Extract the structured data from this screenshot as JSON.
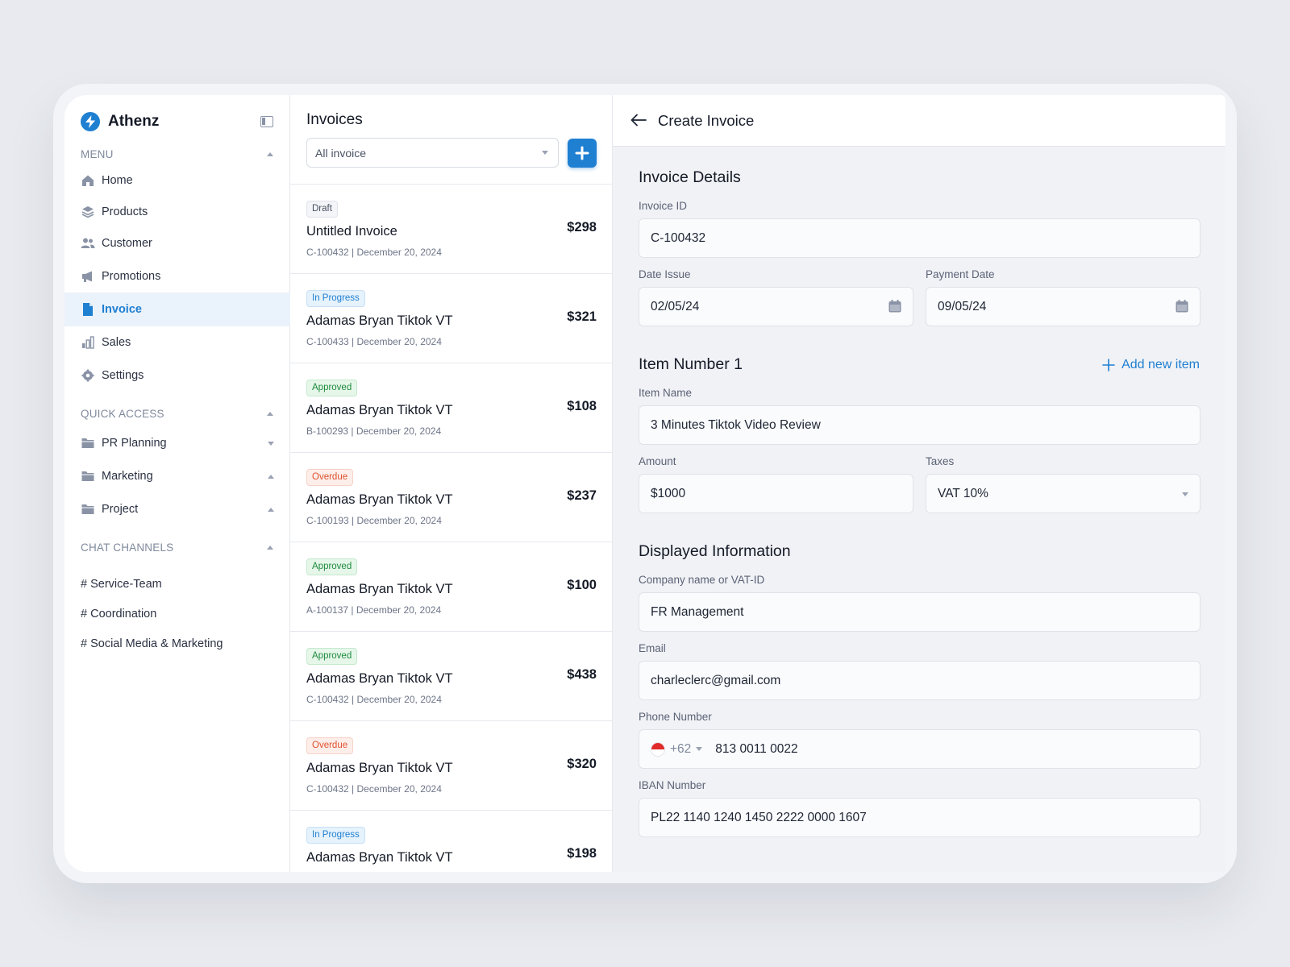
{
  "brand": {
    "name": "Athenz",
    "accent": "#1f7fd1"
  },
  "sidebar": {
    "menu_header": "MENU",
    "items": [
      {
        "label": "Home",
        "icon": "home-icon"
      },
      {
        "label": "Products",
        "icon": "layers-icon"
      },
      {
        "label": "Customer",
        "icon": "users-icon"
      },
      {
        "label": "Promotions",
        "icon": "megaphone-icon"
      },
      {
        "label": "Invoice",
        "icon": "document-icon",
        "active": true
      },
      {
        "label": "Sales",
        "icon": "bar-chart-icon"
      },
      {
        "label": "Settings",
        "icon": "gear-icon"
      }
    ],
    "quick_access_header": "QUICK ACCESS",
    "quick_access": [
      {
        "label": "PR Planning",
        "icon": "folder-icon"
      },
      {
        "label": "Marketing",
        "icon": "folder-icon"
      },
      {
        "label": "Project",
        "icon": "folder-icon"
      }
    ],
    "chat_header": "CHAT CHANNELS",
    "channels": [
      "# Service-Team",
      "# Coordination",
      "# Social Media & Marketing"
    ]
  },
  "invoices": {
    "title": "Invoices",
    "filter_value": "All invoice",
    "list": [
      {
        "status": "Draft",
        "name": "Untitled Invoice",
        "meta": "C-100432 | December 20, 2024",
        "amount": "$298"
      },
      {
        "status": "In Progress",
        "name": "Adamas Bryan Tiktok VT",
        "meta": "C-100433 | December 20, 2024",
        "amount": "$321"
      },
      {
        "status": "Approved",
        "name": "Adamas Bryan Tiktok VT",
        "meta": "B-100293 | December 20, 2024",
        "amount": "$108"
      },
      {
        "status": "Overdue",
        "name": "Adamas Bryan Tiktok VT",
        "meta": "C-100193 | December 20, 2024",
        "amount": "$237"
      },
      {
        "status": "Approved",
        "name": "Adamas Bryan Tiktok VT",
        "meta": "A-100137 | December 20, 2024",
        "amount": "$100"
      },
      {
        "status": "Approved",
        "name": "Adamas Bryan Tiktok VT",
        "meta": "C-100432 | December 20, 2024",
        "amount": "$438"
      },
      {
        "status": "Overdue",
        "name": "Adamas Bryan Tiktok VT",
        "meta": "C-100432 | December 20, 2024",
        "amount": "$320"
      },
      {
        "status": "In Progress",
        "name": "Adamas Bryan Tiktok VT",
        "meta": "",
        "amount": "$198"
      }
    ]
  },
  "create": {
    "title": "Create Invoice",
    "details_heading": "Invoice Details",
    "invoice_id_label": "Invoice ID",
    "invoice_id": "C-100432",
    "date_issue_label": "Date Issue",
    "date_issue": "02/05/24",
    "payment_date_label": "Payment Date",
    "payment_date": "09/05/24",
    "item_heading": "Item Number 1",
    "add_item_label": "Add new item",
    "item_name_label": "Item Name",
    "item_name": "3 Minutes Tiktok Video Review",
    "amount_label": "Amount",
    "amount": "$1000",
    "taxes_label": "Taxes",
    "taxes": "VAT 10%",
    "display_heading": "Displayed Information",
    "company_label": "Company name or VAT-ID",
    "company": "FR Management",
    "email_label": "Email",
    "email": "charleclerc@gmail.com",
    "phone_label": "Phone Number",
    "phone_code": "+62",
    "phone": "813 0011 0022",
    "iban_label": "IBAN Number",
    "iban": "PL22 1140 1240 1450 2222 0000 1607"
  }
}
